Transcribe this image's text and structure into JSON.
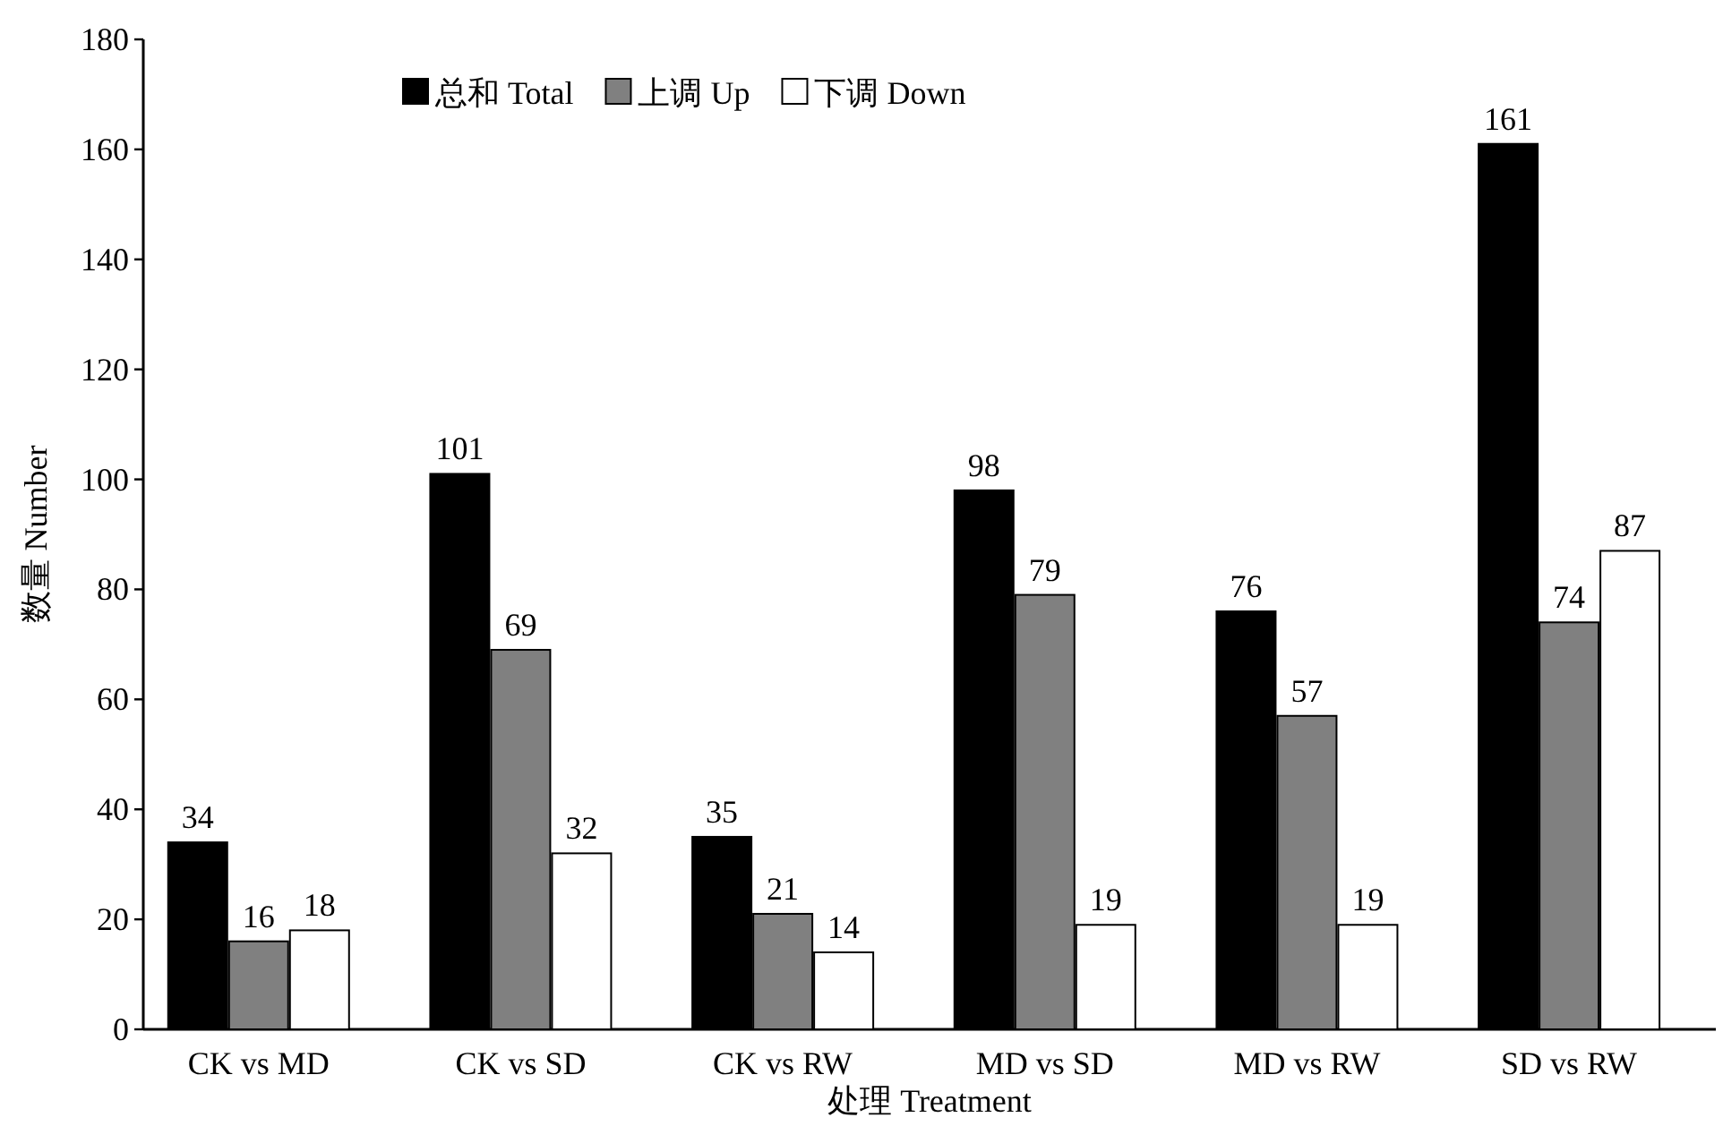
{
  "chart_data": {
    "type": "bar",
    "xlabel": "处理 Treatment",
    "ylabel": "数量 Number",
    "categories": [
      "CK vs MD",
      "CK vs SD",
      "CK vs RW",
      "MD vs SD",
      "MD vs RW",
      "SD vs RW"
    ],
    "series": [
      {
        "name": "总和 Total",
        "color": "#000000",
        "values": [
          34,
          101,
          35,
          98,
          76,
          161
        ]
      },
      {
        "name": "上调 Up",
        "color": "#808080",
        "values": [
          16,
          69,
          21,
          79,
          57,
          74
        ]
      },
      {
        "name": "下调 Down",
        "color": "#ffffff",
        "values": [
          18,
          32,
          14,
          19,
          19,
          87
        ]
      }
    ],
    "ylim": [
      0,
      180
    ],
    "yticks": [
      0,
      20,
      40,
      60,
      80,
      100,
      120,
      140,
      160,
      180
    ],
    "data_labels": true,
    "legend": "top",
    "grid": false
  }
}
